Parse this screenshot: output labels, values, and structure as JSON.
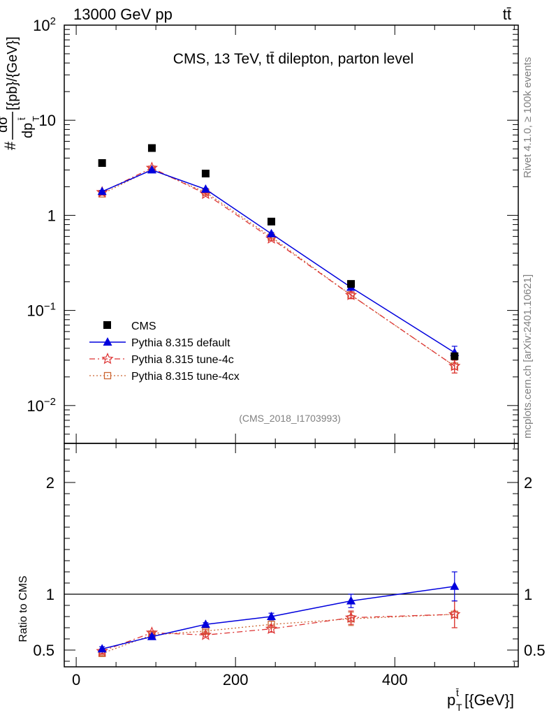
{
  "header": {
    "beam": "13000 GeV pp",
    "process": "tt̄",
    "title": "CMS, 13 TeV, tt̄ dilepton, parton level",
    "analysis": "(CMS_2018_I1703993)",
    "rivet": "Rivet 4.1.0, ≥ 100k events",
    "site": "mcplots.cern.ch [arXiv:2401.10621]"
  },
  "colors": {
    "data": "#000000",
    "default": "#0000dd",
    "tune4c": "#dd3333",
    "tune4cx": "#cc6633"
  },
  "chart_data": [
    {
      "type": "scatter",
      "title": "CMS, 13 TeV, tt̄ dilepton, parton level",
      "ylabel": "#dσ/dp_T^t̄ [{pb}/{GeV}]",
      "yscale": "log",
      "ylim": [
        0.004,
        100
      ],
      "xlim": [
        -15,
        555
      ],
      "yticks": [
        {
          "value": 0.01,
          "label": "10",
          "exp": "−2"
        },
        {
          "value": 0.1,
          "label": "10",
          "exp": "−1"
        },
        {
          "value": 1,
          "label": "1",
          "exp": ""
        },
        {
          "value": 10,
          "label": "10",
          "exp": ""
        },
        {
          "value": 100,
          "label": "10",
          "exp": "2"
        }
      ],
      "x": [
        32.5,
        95,
        162.5,
        245,
        345,
        475
      ],
      "series": [
        {
          "name": "CMS",
          "marker": "square",
          "values": [
            3.55,
            5.1,
            2.75,
            0.86,
            0.19,
            0.033
          ]
        },
        {
          "name": "Pythia 8.315 default",
          "marker": "triangle",
          "line": "solid",
          "values": [
            1.78,
            3.0,
            1.88,
            0.64,
            0.175,
            0.036
          ],
          "err_up": [
            0.05,
            0.05,
            0.04,
            0.02,
            0.012,
            0.006
          ],
          "err_dn": [
            0.05,
            0.05,
            0.04,
            0.02,
            0.012,
            0.005
          ]
        },
        {
          "name": "Pythia 8.315 tune-4c",
          "marker": "star",
          "line": "dashdot",
          "values": [
            1.75,
            3.15,
            1.68,
            0.57,
            0.145,
            0.026
          ],
          "err_up": [
            0.05,
            0.05,
            0.04,
            0.02,
            0.012,
            0.004
          ],
          "err_dn": [
            0.05,
            0.05,
            0.04,
            0.02,
            0.012,
            0.004
          ]
        },
        {
          "name": "Pythia 8.315 tune-4cx",
          "marker": "open-square",
          "line": "dotted",
          "values": [
            1.68,
            3.05,
            1.75,
            0.59,
            0.145,
            0.026
          ],
          "err_up": [
            0.05,
            0.05,
            0.04,
            0.02,
            0.012,
            0.004
          ],
          "err_dn": [
            0.05,
            0.05,
            0.04,
            0.02,
            0.012,
            0.004
          ]
        }
      ]
    },
    {
      "type": "scatter",
      "xlabel": "p_T^t̄ [{GeV}]",
      "ylabel": "Ratio to CMS",
      "ylim": [
        0.35,
        2.35
      ],
      "xlim": [
        -15,
        555
      ],
      "yticks": [
        {
          "value": 0.5,
          "label": "0.5"
        },
        {
          "value": 1,
          "label": "1"
        },
        {
          "value": 2,
          "label": "2"
        }
      ],
      "xticks": [
        {
          "value": 0,
          "label": "0"
        },
        {
          "value": 200,
          "label": "200"
        },
        {
          "value": 400,
          "label": "400"
        }
      ],
      "reference": 1,
      "x": [
        32.5,
        95,
        162.5,
        245,
        345,
        475
      ],
      "series": [
        {
          "name": "Pythia 8.315 default",
          "values": [
            0.51,
            0.62,
            0.73,
            0.8,
            0.94,
            1.07
          ],
          "err_up": [
            0.02,
            0.015,
            0.015,
            0.03,
            0.06,
            0.13
          ],
          "err_dn": [
            0.02,
            0.015,
            0.015,
            0.03,
            0.06,
            0.13
          ]
        },
        {
          "name": "Pythia 8.315 tune-4c",
          "values": [
            0.49,
            0.655,
            0.635,
            0.69,
            0.79,
            0.82
          ],
          "err_up": [
            0.02,
            0.015,
            0.015,
            0.03,
            0.06,
            0.12
          ],
          "err_dn": [
            0.02,
            0.015,
            0.015,
            0.03,
            0.06,
            0.12
          ]
        },
        {
          "name": "Pythia 8.315 tune-4cx",
          "values": [
            0.47,
            0.635,
            0.67,
            0.73,
            0.78,
            0.82
          ],
          "err_up": [
            0.02,
            0.015,
            0.015,
            0.03,
            0.06,
            0.12
          ],
          "err_dn": [
            0.02,
            0.015,
            0.015,
            0.03,
            0.06,
            0.12
          ]
        }
      ]
    }
  ]
}
